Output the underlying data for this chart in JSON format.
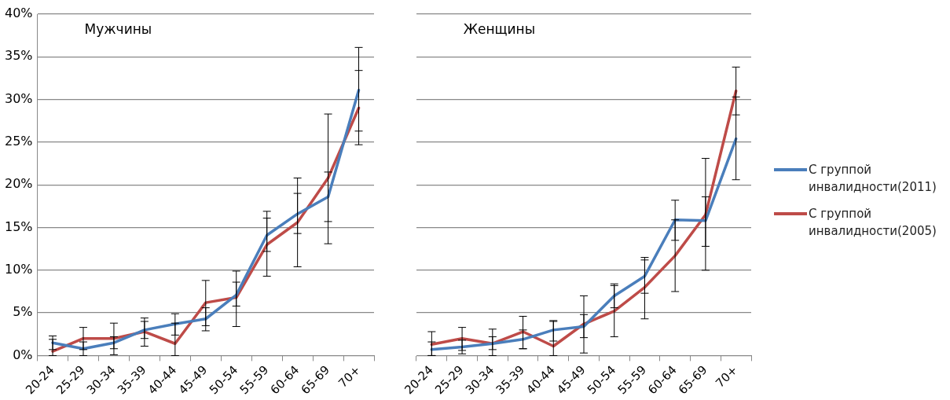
{
  "chart_data": [
    {
      "type": "line",
      "title": "Мужчины",
      "categories": [
        "20-24",
        "25-29",
        "30-34",
        "35-39",
        "40-44",
        "45-49",
        "50-54",
        "55-59",
        "60-64",
        "65-69",
        "70+"
      ],
      "series": [
        {
          "name": "С группой инвалидности(2011)",
          "color": "#4a7ebb",
          "values": [
            1.5,
            0.8,
            1.5,
            3.0,
            3.7,
            4.3,
            7.1,
            14.1,
            16.6,
            18.6,
            31.1
          ],
          "errors": [
            [
              0.7,
              2.3
            ],
            [
              0,
              1.6
            ],
            [
              0.8,
              2.2
            ],
            [
              2.0,
              4.0
            ],
            [
              2.4,
              4.9
            ],
            [
              2.9,
              5.6
            ],
            [
              5.8,
              8.6
            ],
            [
              12.2,
              16.1
            ],
            [
              14.3,
              19.0
            ],
            [
              15.7,
              21.5
            ],
            [
              26.3,
              36.1
            ]
          ]
        },
        {
          "name": "С группой инвалидности(2005)",
          "color": "#be4b48",
          "values": [
            0.5,
            2.0,
            2.0,
            2.8,
            1.4,
            6.2,
            6.8,
            13.0,
            15.6,
            20.8,
            29.0
          ],
          "errors": [
            [
              0,
              1.9
            ],
            [
              0.7,
              3.3
            ],
            [
              0.1,
              3.8
            ],
            [
              1.1,
              4.4
            ],
            [
              0,
              3.8
            ],
            [
              3.5,
              8.8
            ],
            [
              3.4,
              9.9
            ],
            [
              9.3,
              16.9
            ],
            [
              10.4,
              20.8
            ],
            [
              13.1,
              28.3
            ],
            [
              24.7,
              33.4
            ]
          ]
        }
      ],
      "ylim": [
        0,
        40
      ],
      "yticks": [
        {
          "value": 0,
          "label": "0%"
        },
        {
          "value": 5,
          "label": "5%"
        },
        {
          "value": 10,
          "label": "10%"
        },
        {
          "value": 15,
          "label": "15%"
        },
        {
          "value": 20,
          "label": "20%"
        },
        {
          "value": 25,
          "label": "25%"
        },
        {
          "value": 30,
          "label": "30%"
        },
        {
          "value": 35,
          "label": "35%"
        },
        {
          "value": 40,
          "label": "40%"
        }
      ],
      "grid": "y",
      "marker": "none",
      "legend": "right"
    },
    {
      "type": "line",
      "title": "Женщины",
      "categories": [
        "20-24",
        "25-29",
        "30-34",
        "35-39",
        "40-44",
        "45-49",
        "50-54",
        "55-59",
        "60-64",
        "65-69",
        "70+"
      ],
      "series": [
        {
          "color": "#4a7ebb",
          "values": [
            0.7,
            1.0,
            1.4,
            1.9,
            3.0,
            3.4,
            7.0,
            9.3,
            15.9,
            15.8,
            25.4
          ],
          "errors": [
            [
              0,
              1.6
            ],
            [
              0.2,
              1.8
            ],
            [
              0.7,
              2.2
            ],
            [
              0.8,
              3.0
            ],
            [
              1.7,
              4.1
            ],
            [
              2.1,
              4.8
            ],
            [
              5.6,
              8.4
            ],
            [
              7.3,
              11.2
            ],
            [
              13.5,
              18.2
            ],
            [
              12.8,
              18.6
            ],
            [
              20.6,
              30.3
            ]
          ]
        },
        {
          "color": "#be4b48",
          "values": [
            1.3,
            2.0,
            1.4,
            2.8,
            1.1,
            3.7,
            5.2,
            8.0,
            11.7,
            16.5,
            31.0
          ],
          "errors": [
            [
              0,
              2.8
            ],
            [
              0.6,
              3.3
            ],
            [
              0,
              3.1
            ],
            [
              0.8,
              4.6
            ],
            [
              0,
              4.0
            ],
            [
              0.3,
              7.0
            ],
            [
              2.2,
              8.2
            ],
            [
              4.3,
              11.5
            ],
            [
              7.5,
              15.9
            ],
            [
              10.0,
              23.1
            ],
            [
              28.2,
              33.8
            ]
          ]
        }
      ],
      "ylim": [
        0,
        40
      ],
      "yticks": [
        0,
        5,
        10,
        15,
        20,
        25,
        30,
        35,
        40
      ],
      "grid": "y",
      "marker": "none",
      "tick_labels": "x"
    }
  ]
}
